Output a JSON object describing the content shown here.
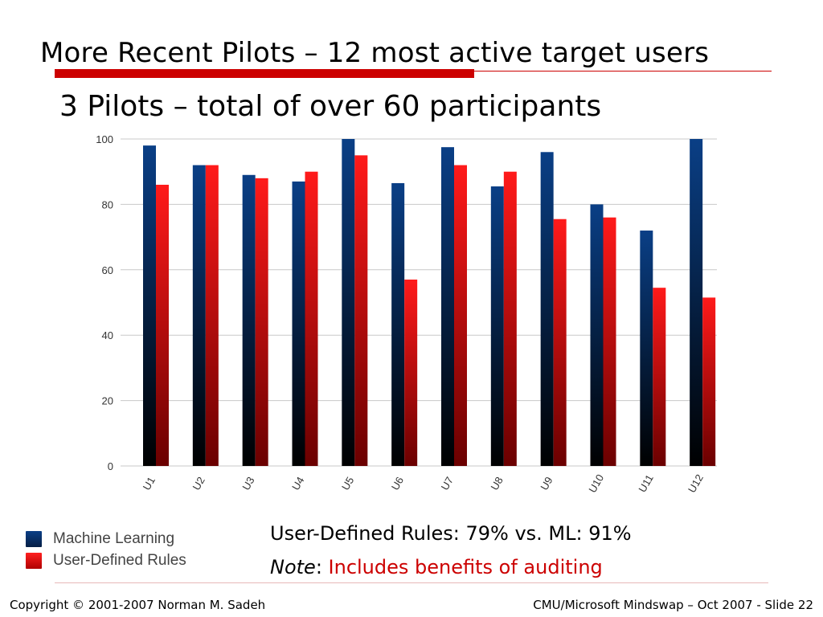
{
  "slide": {
    "title": "More Recent Pilots – 12 most active target users",
    "subtitle": "3 Pilots – total of over 60 participants",
    "summary": "User-Defined Rules: 79% vs. ML: 91%",
    "note_label": "Note",
    "note_colon": ": ",
    "note_text": "Includes benefits of auditing",
    "footer_left": "Copyright © 2001-2007 Norman M. Sadeh",
    "footer_right": "CMU/Microsoft Mindswap – Oct  2007 - Slide 22"
  },
  "colors": {
    "accent": "#cc0000",
    "ml_top": "#0a3f86",
    "ml_bottom": "#000000",
    "udr_top": "#ff1a1a",
    "udr_bottom": "#6a0000"
  },
  "chart_data": {
    "type": "bar",
    "categories": [
      "U1",
      "U2",
      "U3",
      "U4",
      "U5",
      "U6",
      "U7",
      "U8",
      "U9",
      "U10",
      "U11",
      "U12"
    ],
    "series": [
      {
        "name": "Machine Learning",
        "values": [
          98,
          92,
          89,
          87,
          100,
          86.5,
          97.5,
          85.5,
          96,
          80,
          72,
          100
        ]
      },
      {
        "name": "User-Defined Rules",
        "values": [
          86,
          92,
          88,
          90,
          95,
          57,
          92,
          90,
          75.5,
          76,
          54.5,
          51.5
        ]
      }
    ],
    "ylim": [
      0,
      100
    ],
    "yticks": [
      0,
      20,
      40,
      60,
      80,
      100
    ],
    "grid": true,
    "legend_position": "bottom-left",
    "title": "",
    "xlabel": "",
    "ylabel": ""
  }
}
